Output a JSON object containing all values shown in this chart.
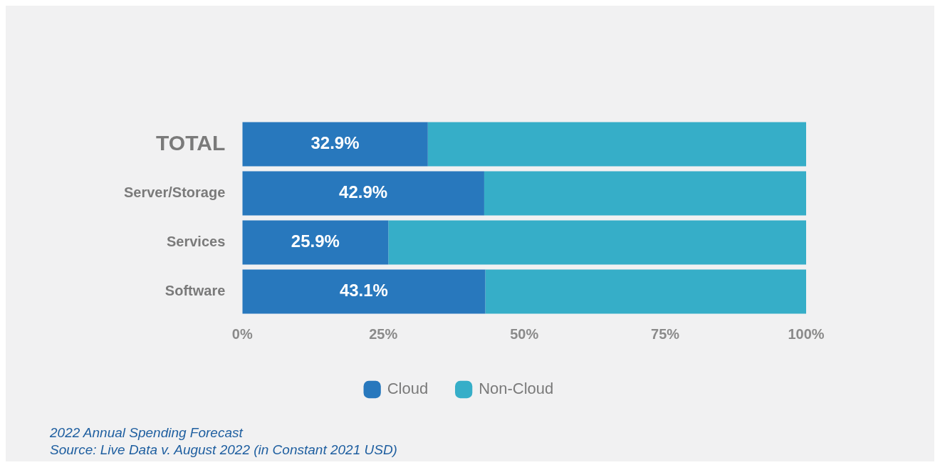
{
  "chart_data": {
    "type": "bar",
    "orientation": "horizontal",
    "stacked": true,
    "categories": [
      "TOTAL",
      "Server/Storage",
      "Services",
      "Software"
    ],
    "series": [
      {
        "name": "Cloud",
        "color": "#2878bd",
        "values": [
          32.9,
          42.9,
          25.9,
          43.1
        ],
        "value_labels": [
          "32.9%",
          "42.9%",
          "25.9%",
          "43.1%"
        ]
      },
      {
        "name": "Non-Cloud",
        "color": "#36aec8",
        "values": [
          67.1,
          57.1,
          74.1,
          56.9
        ]
      }
    ],
    "xlim": [
      0,
      100
    ],
    "xticks": [
      {
        "value": 0,
        "label": "0%"
      },
      {
        "value": 25,
        "label": "25%"
      },
      {
        "value": 50,
        "label": "50%"
      },
      {
        "value": 75,
        "label": "75%"
      },
      {
        "value": 100,
        "label": "100%"
      }
    ],
    "grid": false,
    "legend": "bottom",
    "annotations": [
      "2022 Annual Spending Forecast",
      "Source: Live Data v. August 2022 (in Constant 2021 USD)"
    ]
  }
}
